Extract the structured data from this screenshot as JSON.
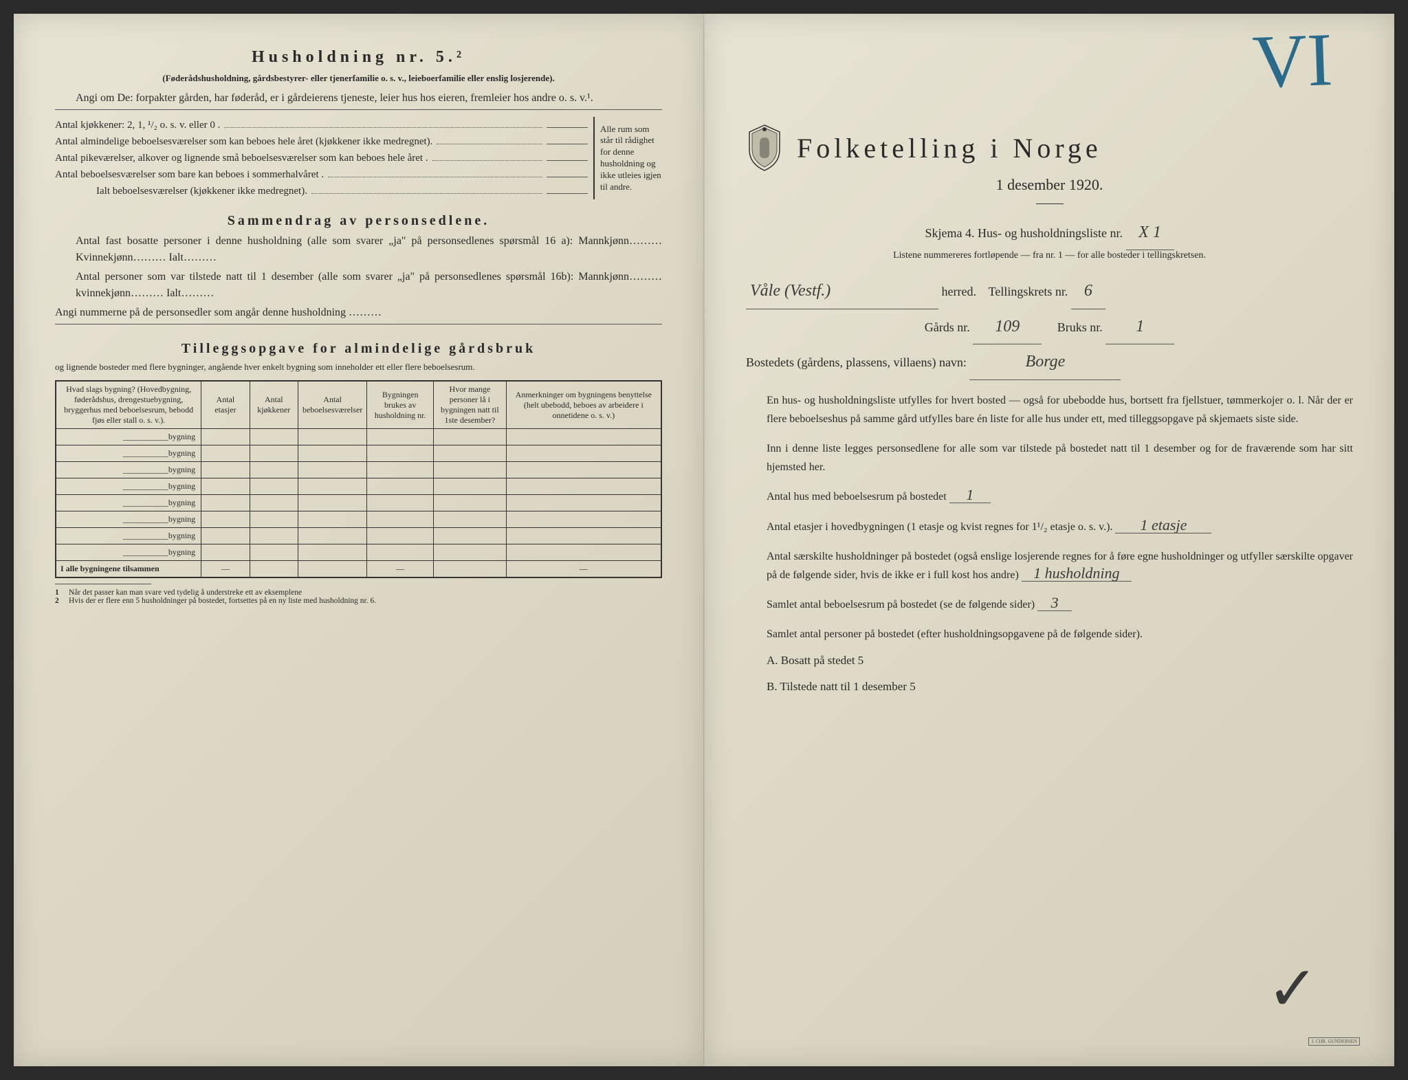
{
  "leftPage": {
    "heading": "Husholdning nr. 5.²",
    "subNote": "(Føderådshusholdning, gårdsbestyrer- eller tjenerfamilie o. s. v., leieboerfamilie eller enslig losjerende).",
    "angiLine": "Angi om De:  forpakter gården, har føderåd, er i gårdeierens tjeneste, leier hus hos eieren, fremleier hos andre o. s. v.¹.",
    "kitchenLine": "Antal kjøkkener: 2, 1, ¹/₂ o. s. v. eller 0 .",
    "rows": [
      "Antal almindelige beboelsesværelser som kan beboes hele året (kjøkkener ikke medregnet).",
      "Antal pikeværelser, alkover og lignende små beboelsesværelser som kan beboes hele året .",
      "Antal beboelsesværelser som bare kan beboes i sommerhalvåret .",
      "Ialt beboelsesværelser (kjøkkener ikke medregnet)."
    ],
    "bracketNote": "Alle rum som står til rådighet for denne husholdning og ikke utleies igjen til andre.",
    "sammendragHeading": "Sammendrag av personsedlene.",
    "sammendragLines": [
      "Antal fast bosatte personer i denne husholdning (alle som svarer „ja\" på personsedlenes spørsmål 16 a): Mannkjønn……… Kvinnekjønn……… Ialt………",
      "Antal personer som var tilstede natt til 1 desember (alle som svarer „ja\" på personsedlenes spørsmål 16b): Mannkjønn……… kvinnekjønn……… Ialt………",
      "Angi nummerne på de personsedler som angår denne husholdning ………"
    ],
    "tilleggHeading": "Tilleggsopgave for almindelige gårdsbruk",
    "tilleggSub": "og lignende bosteder med flere bygninger, angående hver enkelt bygning som inneholder ett eller flere beboelsesrum.",
    "tableHeaders": [
      "Hvad slags bygning? (Hovedbygning, føderådshus, drengestuebygning, bryggerhus med beboelsesrum, bebodd fjøs eller stall o. s. v.).",
      "Antal etasjer",
      "Antal kjøkkener",
      "Antal beboelsesværelser",
      "Bygningen brukes av husholdning nr.",
      "Hvor mange personer lå i bygningen natt til 1ste desember?",
      "Anmerkninger om bygningens benyttelse (helt ubebodd, beboes av arbeidere i onnetidene o. s. v.)"
    ],
    "bygningLabel": "bygning",
    "tableTotalRow": "I alle bygningene tilsammen",
    "footnotes": [
      "Når det passer kan man svare ved tydelig å understreke ett av eksemplene",
      "Hvis der er flere enn 5 husholdninger på bostedet, fortsettes på en ny liste med husholdning nr. 6."
    ]
  },
  "rightPage": {
    "romanNumeral": "VI",
    "mainTitle": "Folketelling i Norge",
    "dateLine": "1 desember 1920.",
    "skjemaLine": "Skjema 4.  Hus- og husholdningsliste nr.",
    "listNr": "X 1",
    "listNote": "Listene nummereres fortløpende — fra nr. 1 — for alle bosteder i tellingskretsen.",
    "herred": "Våle (Vestf.)",
    "herredLabel": "herred.",
    "kretsLabel": "Tellingskrets nr.",
    "kretsNr": "6",
    "gardsLabel": "Gårds nr.",
    "gardsNr": "109",
    "bruksLabel": "Bruks nr.",
    "bruksNr": "1",
    "bostedLabel": "Bostedets (gårdens, plassens, villaens) navn:",
    "bostedNavn": "Borge",
    "para1": "En hus- og husholdningsliste utfylles for hvert bosted — også for ubebodde hus, bortsett fra fjellstuer, tømmerkojer o. l.  Når der er flere beboelseshus på samme gård utfylles bare én liste for alle hus under ett, med tilleggsopgave på skjemaets siste side.",
    "para2": "Inn i denne liste legges personsedlene for alle som var tilstede på bostedet natt til 1 desember og for de fraværende som har sitt hjemsted her.",
    "antalHusLabel": "Antal hus med beboelsesrum på bostedet",
    "antalHus": "1",
    "antalEtasjerLabel": "Antal etasjer i hovedbygningen (1 etasje og kvist regnes for 1¹/₂ etasje o. s. v.).",
    "antalEtasjer": "1 etasje",
    "antalHushLabel": "Antal særskilte husholdninger på bostedet (også enslige losjerende regnes for å føre egne husholdninger og utfyller særskilte opgaver på de følgende sider, hvis de ikke er i full kost hos andre)",
    "antalHush": "1 husholdning",
    "samletRumLabel": "Samlet antal beboelsesrum på bostedet (se de følgende sider)",
    "samletRum": "3",
    "samletPersLabel": "Samlet antal personer på bostedet (efter husholdningsopgavene på de følgende sider).",
    "bosattLabel": "A.  Bosatt på stedet",
    "bosatt": "5",
    "tilstedeLabel": "B.  Tilstede natt til 1 desember",
    "tilstede": "5",
    "printerTag": "J. CHR. GUNDERSEN"
  },
  "colors": {
    "paperLight": "#e8e4d4",
    "paperMid": "#ddd8c5",
    "paperDark": "#d4cfbb",
    "ink": "#2a2a2a",
    "pencilBlue": "#2a6a8a",
    "handwriting": "#3a3a3a"
  }
}
